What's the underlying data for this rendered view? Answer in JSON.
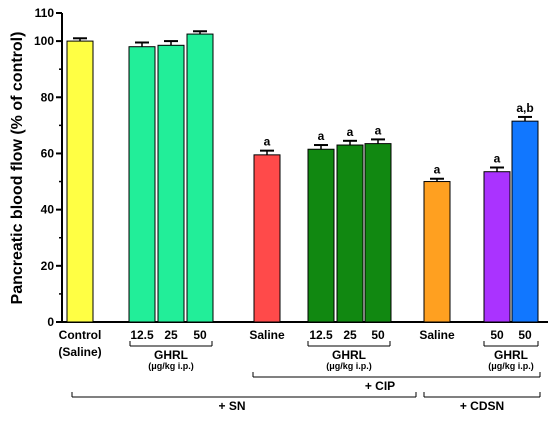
{
  "chart_data": {
    "type": "bar",
    "ylabel": "Pancreatic blood flow (% of control)",
    "ylim": [
      0,
      110
    ],
    "yticks": [
      0,
      20,
      40,
      60,
      80,
      100,
      110
    ],
    "grid": false,
    "bars": [
      {
        "label": "Control (Saline)",
        "value": 100,
        "error": 1.0,
        "color": "#ffff44",
        "sig": ""
      },
      {
        "label": "12.5",
        "value": 98,
        "error": 1.5,
        "color": "#22ee99",
        "sig": ""
      },
      {
        "label": "25",
        "value": 98.5,
        "error": 1.5,
        "color": "#22ee99",
        "sig": ""
      },
      {
        "label": "50",
        "value": 102.5,
        "error": 1.0,
        "color": "#22ee99",
        "sig": ""
      },
      {
        "label": "Saline",
        "value": 59.5,
        "error": 1.5,
        "color": "#ff4a4a",
        "sig": "a"
      },
      {
        "label": "12.5",
        "value": 61.5,
        "error": 1.5,
        "color": "#118811",
        "sig": "a"
      },
      {
        "label": "25",
        "value": 63,
        "error": 1.5,
        "color": "#118811",
        "sig": "a"
      },
      {
        "label": "50",
        "value": 63.5,
        "error": 1.5,
        "color": "#118811",
        "sig": "a"
      },
      {
        "label": "Saline",
        "value": 50,
        "error": 1.0,
        "color": "#ffa020",
        "sig": "a"
      },
      {
        "label": "50",
        "value": 53.5,
        "error": 1.5,
        "color": "#aa33ff",
        "sig": "a"
      },
      {
        "label": "50",
        "value": 71.5,
        "error": 1.5,
        "color": "#1177ff",
        "sig": "a,b"
      }
    ],
    "category_texts": {
      "control_line1": "Control",
      "control_line2": "(Saline)",
      "ghrl_label": "GHRL",
      "ghrl_unit": "(μg/kg i.p.)",
      "cip_label": "+ CIP",
      "sn_label": "+ SN",
      "cdsn_label": "+ CDSN"
    }
  }
}
